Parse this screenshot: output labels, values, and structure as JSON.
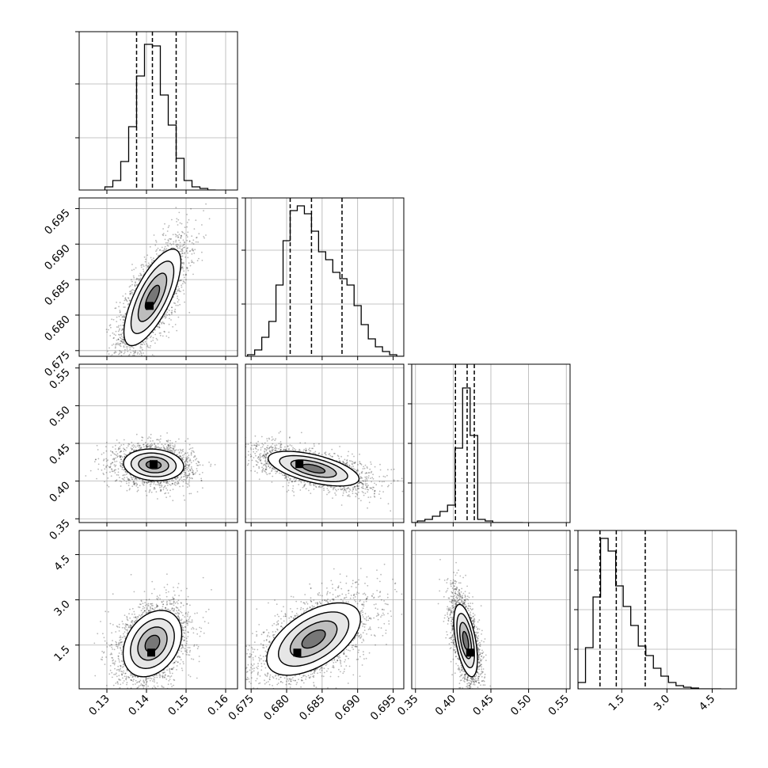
{
  "chart_data": {
    "type": "corner",
    "title": "",
    "colors": {
      "line": "#000000",
      "grid": "#b0b0b0",
      "scatter": "#000000",
      "frame": "#000000"
    },
    "grid": true,
    "parameters": [
      {
        "range": [
          0.123,
          0.163
        ],
        "ticks": [
          0.13,
          0.14,
          0.15,
          0.16
        ],
        "tick_labels": [
          "0.13",
          "0.14",
          "0.15",
          "0.16"
        ]
      },
      {
        "range": [
          0.6742,
          0.6965
        ],
        "ticks": [
          0.675,
          0.68,
          0.685,
          0.69,
          0.695
        ],
        "tick_labels": [
          "0.675",
          "0.680",
          "0.685",
          "0.690",
          "0.695"
        ]
      },
      {
        "range": [
          0.345,
          0.555
        ],
        "ticks": [
          0.35,
          0.4,
          0.45,
          0.5,
          0.55
        ],
        "tick_labels": [
          "0.35",
          "0.40",
          "0.45",
          "0.50",
          "0.55"
        ]
      },
      {
        "range": [
          0.05,
          5.3
        ],
        "ticks": [
          1.5,
          3.0,
          4.5
        ],
        "tick_labels": [
          "1.5",
          "3.0",
          "4.5"
        ]
      }
    ],
    "histograms": [
      {
        "param": 0,
        "bins": [
          0.1295,
          0.1315,
          0.1335,
          0.1355,
          0.1375,
          0.1395,
          0.1415,
          0.1435,
          0.1455,
          0.1475,
          0.1495,
          0.1515,
          0.1535,
          0.1555
        ],
        "counts": [
          0.02,
          0.06,
          0.18,
          0.4,
          0.72,
          0.92,
          0.91,
          0.6,
          0.41,
          0.2,
          0.06,
          0.02,
          0.01,
          0.0
        ],
        "quantiles": [
          0.1375,
          0.1415,
          0.1475
        ],
        "yticks": [
          0.33,
          0.67,
          1.0
        ]
      },
      {
        "param": 1,
        "bins": [
          0.6745,
          0.6755,
          0.6765,
          0.6775,
          0.6785,
          0.6795,
          0.6805,
          0.6815,
          0.6825,
          0.6835,
          0.6845,
          0.6855,
          0.6865,
          0.6875,
          0.6885,
          0.6895,
          0.6905,
          0.6915,
          0.6925,
          0.6935,
          0.6945,
          0.6955
        ],
        "counts": [
          0.01,
          0.04,
          0.12,
          0.22,
          0.45,
          0.73,
          0.92,
          0.95,
          0.9,
          0.79,
          0.66,
          0.61,
          0.53,
          0.49,
          0.45,
          0.32,
          0.2,
          0.11,
          0.06,
          0.03,
          0.01,
          0.0
        ],
        "quantiles": [
          0.6805,
          0.6835,
          0.6878
        ],
        "yticks": [
          0.33,
          0.67,
          1.0
        ]
      },
      {
        "param": 2,
        "bins": [
          0.3425,
          0.3525,
          0.3625,
          0.3725,
          0.3825,
          0.3925,
          0.4025,
          0.4125,
          0.4225,
          0.4325,
          0.4425,
          0.4525,
          0.4625,
          0.4725,
          0.4825
        ],
        "counts": [
          0.0,
          0.01,
          0.02,
          0.04,
          0.07,
          0.11,
          0.47,
          0.85,
          0.55,
          0.02,
          0.01,
          0.0,
          0.0,
          0.0,
          0.0
        ],
        "quantiles": [
          0.403,
          0.4185,
          0.428
        ],
        "yticks": [
          0.25,
          0.5,
          0.75,
          1.0
        ]
      },
      {
        "param": 3,
        "bins": [
          0.05,
          0.3,
          0.55,
          0.8,
          1.05,
          1.3,
          1.55,
          1.8,
          2.05,
          2.3,
          2.55,
          2.8,
          3.05,
          3.3,
          3.55,
          3.8,
          4.05,
          4.3,
          4.55
        ],
        "counts": [
          0.04,
          0.26,
          0.58,
          0.95,
          0.87,
          0.65,
          0.52,
          0.4,
          0.27,
          0.21,
          0.13,
          0.08,
          0.04,
          0.02,
          0.01,
          0.005,
          0.0,
          0.0,
          0.0
        ],
        "quantiles": [
          0.78,
          1.32,
          2.28
        ],
        "yticks": [
          0.25,
          0.5,
          0.75,
          1.0
        ]
      }
    ],
    "pairs": [
      {
        "x": 0,
        "y": 1,
        "center": [
          0.1415,
          0.6825
        ],
        "spread": [
          0.0036,
          0.0034
        ],
        "rho": 0.72,
        "mode": [
          0.1408,
          0.6813
        ],
        "n_points": 2400
      },
      {
        "x": 0,
        "y": 2,
        "center": [
          0.1418,
          0.4215
        ],
        "spread": [
          0.0038,
          0.0105
        ],
        "rho": -0.1,
        "mode": [
          0.1418,
          0.4225
        ],
        "n_points": 2400
      },
      {
        "x": 1,
        "y": 2,
        "center": [
          0.6838,
          0.4165
        ],
        "spread": [
          0.0032,
          0.0115
        ],
        "rho": -0.58,
        "mode": [
          0.6818,
          0.4225
        ],
        "n_points": 2400
      },
      {
        "x": 0,
        "y": 3,
        "center": [
          0.1415,
          1.55
        ],
        "spread": [
          0.0037,
          0.55
        ],
        "rho": 0.3,
        "mode": [
          0.1412,
          1.25
        ],
        "n_points": 2400
      },
      {
        "x": 1,
        "y": 3,
        "center": [
          0.6838,
          1.7
        ],
        "spread": [
          0.0033,
          0.6
        ],
        "rho": 0.55,
        "mode": [
          0.6815,
          1.25
        ],
        "n_points": 2400
      },
      {
        "x": 2,
        "y": 3,
        "center": [
          0.4165,
          1.65
        ],
        "spread": [
          0.0078,
          0.6
        ],
        "rho": -0.52,
        "mode": [
          0.4225,
          1.25
        ],
        "n_points": 2400
      }
    ]
  }
}
